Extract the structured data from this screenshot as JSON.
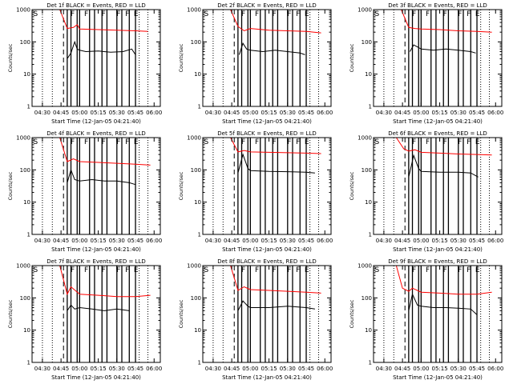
{
  "colors": {
    "events": "#000000",
    "lld": "#ff0000",
    "axes": "#000000"
  },
  "chart_data": [
    {
      "type": "line",
      "title": "Det 1f BLACK = Events, RED = LLD",
      "xlabel": "Start Time (12-Jan-05 04:21:40)",
      "ylabel": "Counts/sec",
      "y_scale": "log",
      "ylim": [
        1,
        1000
      ],
      "y_ticks": [
        {
          "v": 1,
          "label": "1"
        },
        {
          "v": 10,
          "label": "10"
        },
        {
          "v": 100,
          "label": "100"
        },
        {
          "v": 1000,
          "label": "1000"
        }
      ],
      "x_ticks": [
        "04:30",
        "04:45",
        "05:00",
        "05:15",
        "05:30",
        "05:45",
        "06:00"
      ],
      "x_range": [
        "04:21:40",
        "06:05"
      ],
      "markers": [
        "S",
        "F",
        "F",
        "F",
        "F",
        "F",
        "E"
      ],
      "series": [
        {
          "name": "Events",
          "color": "#000000",
          "x": [
            "04:50",
            "04:53",
            "04:56",
            "04:58",
            "05:00",
            "05:05",
            "05:15",
            "05:25",
            "05:35",
            "05:42",
            "05:45"
          ],
          "y": [
            30,
            45,
            100,
            60,
            55,
            50,
            52,
            48,
            50,
            60,
            40
          ]
        },
        {
          "name": "LLD",
          "color": "#ff0000",
          "x": [
            "04:44",
            "04:50",
            "04:55",
            "04:58",
            "05:00",
            "05:15",
            "05:30",
            "05:45",
            "05:55"
          ],
          "y": [
            1000,
            260,
            280,
            340,
            250,
            240,
            230,
            220,
            210
          ]
        }
      ]
    },
    {
      "type": "line",
      "title": "Det 2f BLACK = Events, RED = LLD",
      "xlabel": "Start Time (12-Jan-05 04:21:40)",
      "ylabel": "Counts/sec",
      "y_scale": "log",
      "ylim": [
        1,
        1000
      ],
      "y_ticks": [
        {
          "v": 1,
          "label": "1"
        },
        {
          "v": 10,
          "label": "10"
        },
        {
          "v": 100,
          "label": "100"
        },
        {
          "v": 1000,
          "label": "1000"
        }
      ],
      "x_ticks": [
        "04:30",
        "04:45",
        "05:00",
        "05:15",
        "05:30",
        "05:45",
        "06:00"
      ],
      "x_range": [
        "04:21:40",
        "06:05"
      ],
      "markers": [
        "S",
        "F",
        "F",
        "F",
        "F",
        "F",
        "E"
      ],
      "series": [
        {
          "name": "Events",
          "color": "#000000",
          "x": [
            "04:51",
            "04:54",
            "04:57",
            "05:00",
            "05:10",
            "05:20",
            "05:30",
            "05:40",
            "05:44"
          ],
          "y": [
            40,
            90,
            60,
            55,
            50,
            55,
            50,
            45,
            40
          ]
        },
        {
          "name": "LLD",
          "color": "#ff0000",
          "x": [
            "04:44",
            "04:50",
            "04:55",
            "05:00",
            "05:15",
            "05:30",
            "05:45",
            "05:57"
          ],
          "y": [
            1000,
            300,
            220,
            260,
            230,
            220,
            210,
            190
          ]
        }
      ]
    },
    {
      "type": "line",
      "title": "Det 3f BLACK = Events, RED = LLD",
      "xlabel": "Start Time (12-Jan-05 04:21:40)",
      "ylabel": "Counts/sec",
      "y_scale": "log",
      "ylim": [
        1,
        1000
      ],
      "y_ticks": [
        {
          "v": 1,
          "label": "1"
        },
        {
          "v": 10,
          "label": "10"
        },
        {
          "v": 100,
          "label": "100"
        },
        {
          "v": 1000,
          "label": "1000"
        }
      ],
      "x_ticks": [
        "04:30",
        "04:45",
        "05:00",
        "05:15",
        "05:30",
        "05:45",
        "06:00"
      ],
      "x_range": [
        "04:21:40",
        "06:05"
      ],
      "markers": [
        "S",
        "F",
        "F",
        "F",
        "F",
        "F",
        "E"
      ],
      "series": [
        {
          "name": "Events",
          "color": "#000000",
          "x": [
            "04:51",
            "04:54",
            "04:57",
            "05:00",
            "05:10",
            "05:20",
            "05:30",
            "05:40",
            "05:44"
          ],
          "y": [
            50,
            80,
            70,
            60,
            55,
            60,
            55,
            50,
            45
          ]
        },
        {
          "name": "LLD",
          "color": "#ff0000",
          "x": [
            "04:44",
            "04:50",
            "04:55",
            "05:00",
            "05:15",
            "05:30",
            "05:45",
            "05:57"
          ],
          "y": [
            1000,
            280,
            260,
            250,
            240,
            220,
            210,
            200
          ]
        }
      ]
    },
    {
      "type": "line",
      "title": "Det 4f BLACK = Events, RED = LLD",
      "xlabel": "Start Time (12-Jan-05 04:21:40)",
      "ylabel": "Counts/sec",
      "y_scale": "log",
      "ylim": [
        1,
        1000
      ],
      "y_ticks": [
        {
          "v": 1,
          "label": "1"
        },
        {
          "v": 10,
          "label": "10"
        },
        {
          "v": 100,
          "label": "100"
        },
        {
          "v": 1000,
          "label": "1000"
        }
      ],
      "x_ticks": [
        "04:30",
        "04:45",
        "05:00",
        "05:15",
        "05:30",
        "05:45",
        "06:00"
      ],
      "x_range": [
        "04:21:40",
        "06:05"
      ],
      "markers": [
        "S",
        "F",
        "F",
        "F",
        "F",
        "F",
        "E"
      ],
      "series": [
        {
          "name": "Events",
          "color": "#000000",
          "x": [
            "04:50",
            "04:53",
            "04:56",
            "05:00",
            "05:10",
            "05:20",
            "05:30",
            "05:40",
            "05:45"
          ],
          "y": [
            40,
            100,
            50,
            45,
            50,
            45,
            45,
            40,
            35
          ]
        },
        {
          "name": "LLD",
          "color": "#ff0000",
          "x": [
            "04:44",
            "04:50",
            "04:55",
            "05:00",
            "05:15",
            "05:30",
            "05:45",
            "05:57"
          ],
          "y": [
            1000,
            180,
            220,
            180,
            170,
            160,
            150,
            140
          ]
        }
      ]
    },
    {
      "type": "line",
      "title": "Det 5f BLACK = Events, RED = LLD",
      "xlabel": "Start Time (12-Jan-05 04:21:40)",
      "ylabel": "Counts/sec",
      "y_scale": "log",
      "ylim": [
        1,
        1000
      ],
      "y_ticks": [
        {
          "v": 1,
          "label": "1"
        },
        {
          "v": 10,
          "label": "10"
        },
        {
          "v": 100,
          "label": "100"
        },
        {
          "v": 1000,
          "label": "1000"
        }
      ],
      "x_ticks": [
        "04:30",
        "04:45",
        "05:00",
        "05:15",
        "05:30",
        "05:45",
        "06:00"
      ],
      "x_range": [
        "04:21:40",
        "06:05"
      ],
      "markers": [
        "S",
        "F",
        "F",
        "F",
        "F",
        "F",
        "E"
      ],
      "series": [
        {
          "name": "Events",
          "color": "#000000",
          "x": [
            "04:50",
            "04:54",
            "04:58",
            "05:00",
            "05:15",
            "05:30",
            "05:45",
            "05:52"
          ],
          "y": [
            80,
            300,
            110,
            95,
            90,
            88,
            85,
            80
          ]
        },
        {
          "name": "LLD",
          "color": "#ff0000",
          "x": [
            "04:44",
            "04:50",
            "04:55",
            "05:00",
            "05:15",
            "05:30",
            "05:45",
            "05:57"
          ],
          "y": [
            1000,
            360,
            400,
            360,
            350,
            340,
            330,
            320
          ]
        }
      ]
    },
    {
      "type": "line",
      "title": "Det 6f BLACK = Events, RED = LLD",
      "xlabel": "Start Time (12-Jan-05 04:21:40)",
      "ylabel": "Counts/sec",
      "y_scale": "log",
      "ylim": [
        1,
        1000
      ],
      "y_ticks": [
        {
          "v": 1,
          "label": "1"
        },
        {
          "v": 10,
          "label": "10"
        },
        {
          "v": 100,
          "label": "100"
        },
        {
          "v": 1000,
          "label": "1000"
        }
      ],
      "x_ticks": [
        "04:30",
        "04:45",
        "05:00",
        "05:15",
        "05:30",
        "05:45",
        "06:00"
      ],
      "x_range": [
        "04:21:40",
        "06:05"
      ],
      "markers": [
        "S",
        "F",
        "F",
        "F",
        "F",
        "F",
        "E"
      ],
      "series": [
        {
          "name": "Events",
          "color": "#000000",
          "x": [
            "04:50",
            "04:54",
            "04:58",
            "05:00",
            "05:15",
            "05:30",
            "05:40",
            "05:46"
          ],
          "y": [
            60,
            280,
            110,
            90,
            85,
            85,
            80,
            60
          ]
        },
        {
          "name": "LLD",
          "color": "#ff0000",
          "x": [
            "04:30",
            "04:40",
            "04:46",
            "04:50",
            "04:55",
            "05:00",
            "05:15",
            "05:30",
            "05:45",
            "05:57"
          ],
          "y": [
            1000,
            1000,
            450,
            380,
            420,
            350,
            330,
            310,
            300,
            290
          ]
        }
      ]
    },
    {
      "type": "line",
      "title": "Det 7f BLACK = Events, RED = LLD",
      "xlabel": "Start Time (12-Jan-05 04:21:40)",
      "ylabel": "Counts/sec",
      "y_scale": "log",
      "ylim": [
        1,
        1000
      ],
      "y_ticks": [
        {
          "v": 1,
          "label": "1"
        },
        {
          "v": 10,
          "label": "10"
        },
        {
          "v": 100,
          "label": "100"
        },
        {
          "v": 1000,
          "label": "1000"
        }
      ],
      "x_ticks": [
        "04:30",
        "04:45",
        "05:00",
        "05:15",
        "05:30",
        "05:45",
        "06:00"
      ],
      "x_range": [
        "04:21:40",
        "06:05"
      ],
      "markers": [
        "S",
        "F",
        "F",
        "F",
        "F",
        "F",
        "E"
      ],
      "series": [
        {
          "name": "Events",
          "color": "#000000",
          "x": [
            "04:50",
            "04:53",
            "04:56",
            "05:00",
            "05:10",
            "05:20",
            "05:30",
            "05:40"
          ],
          "y": [
            40,
            60,
            45,
            50,
            45,
            40,
            45,
            40
          ]
        },
        {
          "name": "LLD",
          "color": "#ff0000",
          "x": [
            "04:44",
            "04:50",
            "04:53",
            "05:00",
            "05:15",
            "05:30",
            "05:45",
            "05:57"
          ],
          "y": [
            1000,
            130,
            220,
            130,
            120,
            110,
            110,
            120
          ]
        }
      ]
    },
    {
      "type": "line",
      "title": "Det 8f BLACK = Events, RED = LLD",
      "xlabel": "Start Time (12-Jan-05 04:21:40)",
      "ylabel": "Counts/sec",
      "y_scale": "log",
      "ylim": [
        1,
        1000
      ],
      "y_ticks": [
        {
          "v": 1,
          "label": "1"
        },
        {
          "v": 10,
          "label": "10"
        },
        {
          "v": 100,
          "label": "100"
        },
        {
          "v": 1000,
          "label": "1000"
        }
      ],
      "x_ticks": [
        "04:30",
        "04:45",
        "05:00",
        "05:15",
        "05:30",
        "05:45",
        "06:00"
      ],
      "x_range": [
        "04:21:40",
        "06:05"
      ],
      "markers": [
        "S",
        "F",
        "F",
        "F",
        "F",
        "F",
        "E"
      ],
      "series": [
        {
          "name": "Events",
          "color": "#000000",
          "x": [
            "04:50",
            "04:54",
            "04:58",
            "05:00",
            "05:15",
            "05:30",
            "05:45",
            "05:52"
          ],
          "y": [
            40,
            80,
            55,
            50,
            50,
            55,
            50,
            45
          ]
        },
        {
          "name": "LLD",
          "color": "#ff0000",
          "x": [
            "04:44",
            "04:50",
            "04:55",
            "05:00",
            "05:15",
            "05:30",
            "05:45",
            "05:57"
          ],
          "y": [
            1000,
            170,
            220,
            180,
            170,
            160,
            150,
            140
          ]
        }
      ]
    },
    {
      "type": "line",
      "title": "Det 9f BLACK = Events, RED = LLD",
      "xlabel": "Start Time (12-Jan-05 04:21:40)",
      "ylabel": "Counts/sec",
      "y_scale": "log",
      "ylim": [
        1,
        1000
      ],
      "y_ticks": [
        {
          "v": 1,
          "label": "1"
        },
        {
          "v": 10,
          "label": "10"
        },
        {
          "v": 100,
          "label": "100"
        },
        {
          "v": 1000,
          "label": "1000"
        }
      ],
      "x_ticks": [
        "04:30",
        "04:45",
        "05:00",
        "05:15",
        "05:30",
        "05:45",
        "06:00"
      ],
      "x_range": [
        "04:21:40",
        "06:05"
      ],
      "markers": [
        "S",
        "F",
        "F",
        "F",
        "F",
        "F",
        "E"
      ],
      "series": [
        {
          "name": "Events",
          "color": "#000000",
          "x": [
            "04:50",
            "04:53",
            "04:57",
            "05:00",
            "05:10",
            "05:20",
            "05:30",
            "05:40",
            "05:45"
          ],
          "y": [
            40,
            130,
            60,
            55,
            50,
            50,
            48,
            45,
            30
          ]
        },
        {
          "name": "LLD",
          "color": "#ff0000",
          "x": [
            "04:30",
            "04:40",
            "04:45",
            "04:50",
            "04:53",
            "05:00",
            "05:15",
            "05:30",
            "05:45",
            "05:57"
          ],
          "y": [
            1000,
            1000,
            200,
            160,
            200,
            150,
            140,
            130,
            130,
            150
          ]
        }
      ]
    }
  ]
}
